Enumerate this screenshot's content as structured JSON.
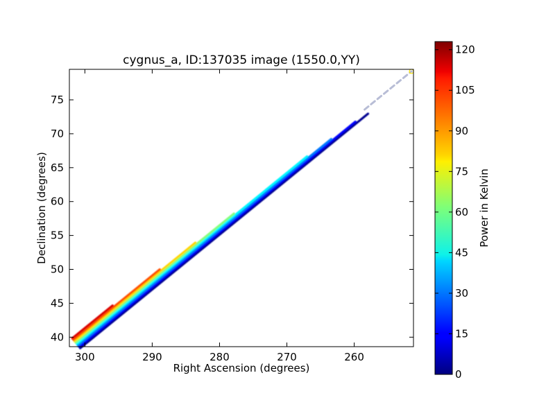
{
  "chart_data": {
    "type": "scatter",
    "title": "cygnus_a, ID:137035 image (1550.0,YY)",
    "xlabel": "Right Ascension (degrees)",
    "ylabel": "Declination (degrees)",
    "xlim": [
      302.3,
      251.2
    ],
    "ylim": [
      38.6,
      79.5
    ],
    "x_ticks": [
      300,
      290,
      280,
      270,
      260
    ],
    "y_ticks": [
      40,
      45,
      50,
      55,
      60,
      65,
      70,
      75
    ],
    "grid": false,
    "colorbar": {
      "label": "Power in Kelvin",
      "range": [
        0,
        123
      ],
      "ticks": [
        0,
        15,
        30,
        45,
        60,
        75,
        90,
        105,
        120
      ],
      "colormap": "jet"
    },
    "track": {
      "start": [
        301.2,
        39.0
      ],
      "end": [
        251.5,
        79.2
      ],
      "color_bands": [
        {
          "offset": -3,
          "power": 2
        },
        {
          "offset": -2,
          "power": 15
        },
        {
          "offset": -1,
          "power": 30
        },
        {
          "offset": 0,
          "power": 45
        },
        {
          "offset": 1,
          "power": 62
        },
        {
          "offset": 2,
          "power": 82
        },
        {
          "offset": 3,
          "power": 98
        },
        {
          "offset": 4,
          "power": 112
        }
      ],
      "band_extents": [
        1.0,
        0.96,
        0.88,
        0.8,
        0.55,
        0.42,
        0.3,
        0.14
      ],
      "faint_tail_start": 0.86,
      "end_marker_power": 80
    }
  },
  "colors": {
    "axis": "#000000",
    "background": "#ffffff",
    "tail": "#b8bdd6"
  }
}
